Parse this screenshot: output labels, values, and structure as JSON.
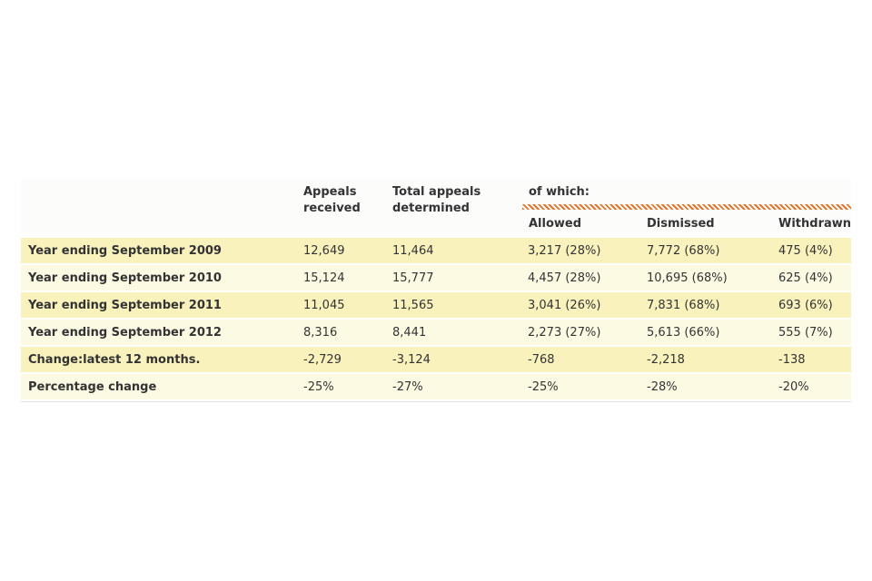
{
  "colors": {
    "row_dark": "#f9f2bd",
    "row_light": "#fdfae3",
    "hatch_orange": "#e0752d",
    "header_bg": "#fcfcfa",
    "text": "#333333",
    "bottom_border": "#e2e2e2"
  },
  "table": {
    "headers": {
      "received": "Appeals received",
      "determined": "Total appeals determined",
      "of_which": "of which:",
      "allowed": "Allowed",
      "dismissed": "Dismissed",
      "withdrawn": "Withdrawn"
    },
    "rows": [
      {
        "label": "Year ending September 2009",
        "received": "12,649",
        "determined": "11,464",
        "allowed": "3,217 (28%)",
        "dismissed": "7,772 (68%)",
        "withdrawn": "475 (4%)"
      },
      {
        "label": "Year ending September 2010",
        "received": "15,124",
        "determined": "15,777",
        "allowed": "4,457 (28%)",
        "dismissed": "10,695 (68%)",
        "withdrawn": "625 (4%)"
      },
      {
        "label": "Year ending September 2011",
        "received": "11,045",
        "determined": "11,565",
        "allowed": "3,041 (26%)",
        "dismissed": "7,831 (68%)",
        "withdrawn": "693 (6%)"
      },
      {
        "label": "Year ending September 2012",
        "received": "8,316",
        "determined": "8,441",
        "allowed": "2,273 (27%)",
        "dismissed": "5,613 (66%)",
        "withdrawn": "555 (7%)"
      },
      {
        "label": "Change:latest 12 months.",
        "received": "-2,729",
        "determined": "-3,124",
        "allowed": "-768",
        "dismissed": "-2,218",
        "withdrawn": "-138"
      },
      {
        "label": "Percentage change",
        "received": "-25%",
        "determined": "-27%",
        "allowed": "-25%",
        "dismissed": "-28%",
        "withdrawn": "-20%"
      }
    ]
  },
  "chart_data": {
    "type": "table",
    "column_headers": [
      "",
      "Appeals received",
      "Total appeals determined",
      "Allowed",
      "Dismissed",
      "Withdrawn"
    ],
    "column_group": {
      "label": "of which:",
      "covers": [
        "Allowed",
        "Dismissed",
        "Withdrawn"
      ]
    },
    "rows": [
      [
        "Year ending September 2009",
        "12,649",
        "11,464",
        "3,217 (28%)",
        "7,772 (68%)",
        "475 (4%)"
      ],
      [
        "Year ending September 2010",
        "15,124",
        "15,777",
        "4,457 (28%)",
        "10,695 (68%)",
        "625 (4%)"
      ],
      [
        "Year ending September 2011",
        "11,045",
        "11,565",
        "3,041 (26%)",
        "7,831 (68%)",
        "693 (6%)"
      ],
      [
        "Year ending September 2012",
        "8,316",
        "8,441",
        "2,273 (27%)",
        "5,613 (66%)",
        "555 (7%)"
      ],
      [
        "Change:latest 12 months.",
        "-2,729",
        "-3,124",
        "-768",
        "-2,218",
        "-138"
      ],
      [
        "Percentage change",
        "-25%",
        "-27%",
        "-25%",
        "-28%",
        "-20%"
      ]
    ]
  }
}
